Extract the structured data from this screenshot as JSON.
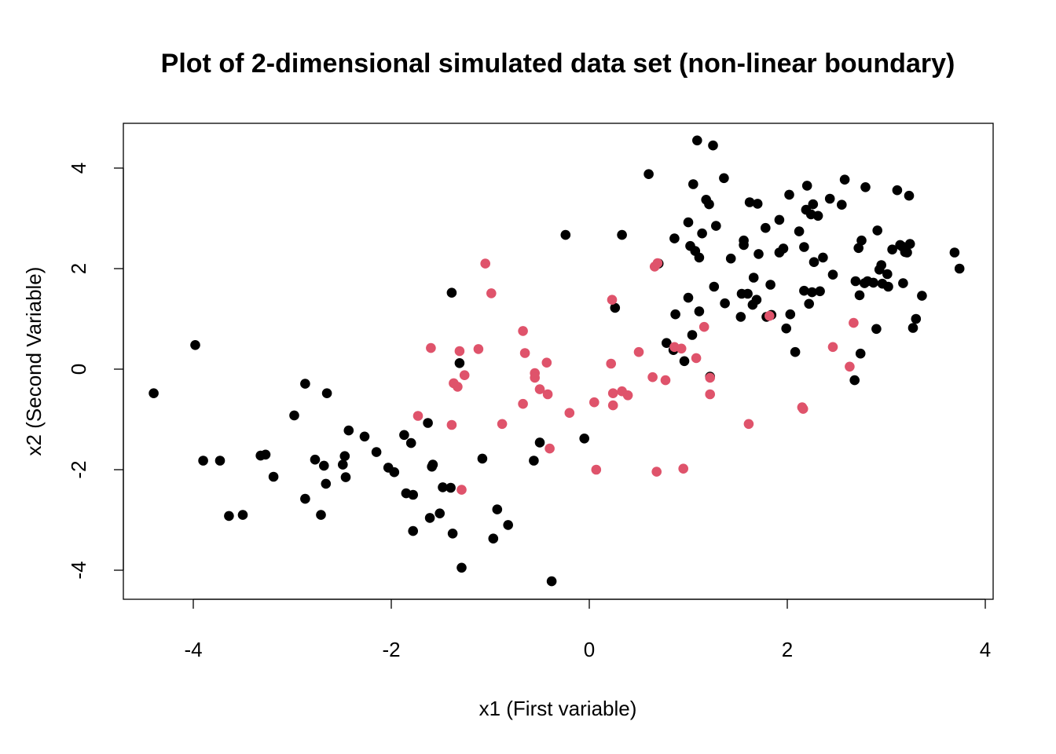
{
  "chart_data": {
    "type": "scatter",
    "title": "Plot of 2-dimensional simulated data set (non-linear boundary)",
    "xlabel": "x1 (First variable)",
    "ylabel": "x2 (Second Variable)",
    "xlim": [
      -4.6,
      4.0
    ],
    "ylim": [
      -4.6,
      4.85
    ],
    "xticks": [
      -4,
      -2,
      0,
      2,
      4
    ],
    "yticks": [
      -4,
      -2,
      0,
      2,
      4
    ],
    "grid": false,
    "legend": "none",
    "colors": {
      "black": "#000000",
      "red": "#DF536B"
    },
    "series": [
      {
        "color": "black",
        "points": [
          [
            -4.4,
            -0.48
          ],
          [
            -3.98,
            0.48
          ],
          [
            -3.9,
            -1.82
          ],
          [
            -3.73,
            -1.82
          ],
          [
            -3.64,
            -2.92
          ],
          [
            -3.5,
            -2.9
          ],
          [
            -3.32,
            -1.72
          ],
          [
            -3.27,
            -1.7
          ],
          [
            -3.19,
            -2.14
          ],
          [
            -2.98,
            -0.92
          ],
          [
            -2.87,
            -0.29
          ],
          [
            -2.87,
            -2.58
          ],
          [
            -2.77,
            -1.8
          ],
          [
            -2.71,
            -2.9
          ],
          [
            -2.68,
            -1.92
          ],
          [
            -2.66,
            -2.28
          ],
          [
            -2.65,
            -0.48
          ],
          [
            -2.49,
            -1.9
          ],
          [
            -2.47,
            -1.73
          ],
          [
            -2.46,
            -2.15
          ],
          [
            -2.43,
            -1.22
          ],
          [
            -2.27,
            -1.34
          ],
          [
            -2.15,
            -1.65
          ],
          [
            -2.03,
            -1.96
          ],
          [
            -1.97,
            -2.05
          ],
          [
            -1.87,
            -1.31
          ],
          [
            -1.85,
            -2.47
          ],
          [
            -1.8,
            -1.47
          ],
          [
            -1.78,
            -2.5
          ],
          [
            -1.78,
            -3.22
          ],
          [
            -1.63,
            -1.07
          ],
          [
            -1.61,
            -2.96
          ],
          [
            -1.59,
            -1.94
          ],
          [
            -1.58,
            -1.9
          ],
          [
            -1.51,
            -2.87
          ],
          [
            -1.48,
            -2.35
          ],
          [
            -1.4,
            -2.36
          ],
          [
            -1.38,
            -3.27
          ],
          [
            -1.39,
            1.52
          ],
          [
            -1.31,
            0.12
          ],
          [
            -1.29,
            -3.95
          ],
          [
            -1.08,
            -1.78
          ],
          [
            -0.97,
            -3.37
          ],
          [
            -0.93,
            -2.79
          ],
          [
            -0.82,
            -3.1
          ],
          [
            -0.56,
            -1.82
          ],
          [
            -0.5,
            -1.46
          ],
          [
            -0.38,
            -4.22
          ],
          [
            -0.24,
            2.67
          ],
          [
            -0.05,
            -1.38
          ],
          [
            0.26,
            1.22
          ],
          [
            0.33,
            2.67
          ],
          [
            0.6,
            3.88
          ],
          [
            0.7,
            2.1
          ],
          [
            0.78,
            0.52
          ],
          [
            0.85,
            0.38
          ],
          [
            0.86,
            2.6
          ],
          [
            0.87,
            1.09
          ],
          [
            0.96,
            0.16
          ],
          [
            1.0,
            2.92
          ],
          [
            1.0,
            1.42
          ],
          [
            1.02,
            2.45
          ],
          [
            1.04,
            0.68
          ],
          [
            1.05,
            3.68
          ],
          [
            1.07,
            2.35
          ],
          [
            1.09,
            4.55
          ],
          [
            1.11,
            2.22
          ],
          [
            1.11,
            1.15
          ],
          [
            1.14,
            2.7
          ],
          [
            1.18,
            3.37
          ],
          [
            1.21,
            3.28
          ],
          [
            1.22,
            -0.15
          ],
          [
            1.25,
            4.45
          ],
          [
            1.26,
            1.64
          ],
          [
            1.28,
            2.85
          ],
          [
            1.36,
            3.8
          ],
          [
            1.37,
            1.31
          ],
          [
            1.43,
            2.2
          ],
          [
            1.53,
            1.04
          ],
          [
            1.54,
            1.5
          ],
          [
            1.56,
            2.56
          ],
          [
            1.56,
            2.47
          ],
          [
            1.6,
            1.5
          ],
          [
            1.62,
            3.32
          ],
          [
            1.65,
            1.28
          ],
          [
            1.66,
            1.82
          ],
          [
            1.69,
            1.38
          ],
          [
            1.7,
            3.29
          ],
          [
            1.71,
            2.29
          ],
          [
            1.78,
            2.81
          ],
          [
            1.79,
            1.04
          ],
          [
            1.83,
            1.68
          ],
          [
            1.84,
            1.08
          ],
          [
            1.92,
            2.97
          ],
          [
            1.92,
            2.32
          ],
          [
            1.96,
            2.4
          ],
          [
            1.99,
            0.81
          ],
          [
            2.02,
            3.47
          ],
          [
            2.03,
            1.09
          ],
          [
            2.08,
            0.34
          ],
          [
            2.12,
            2.74
          ],
          [
            2.17,
            2.43
          ],
          [
            2.17,
            1.56
          ],
          [
            2.19,
            3.17
          ],
          [
            2.2,
            3.65
          ],
          [
            2.22,
            1.3
          ],
          [
            2.24,
            3.08
          ],
          [
            2.25,
            1.53
          ],
          [
            2.26,
            3.28
          ],
          [
            2.27,
            2.13
          ],
          [
            2.31,
            3.05
          ],
          [
            2.33,
            1.55
          ],
          [
            2.36,
            2.22
          ],
          [
            2.43,
            3.39
          ],
          [
            2.46,
            1.88
          ],
          [
            2.55,
            3.27
          ],
          [
            2.58,
            3.77
          ],
          [
            2.68,
            -0.22
          ],
          [
            2.69,
            1.75
          ],
          [
            2.72,
            2.41
          ],
          [
            2.73,
            1.47
          ],
          [
            2.74,
            0.31
          ],
          [
            2.75,
            2.56
          ],
          [
            2.78,
            1.71
          ],
          [
            2.79,
            3.62
          ],
          [
            2.81,
            1.75
          ],
          [
            2.87,
            1.72
          ],
          [
            2.9,
            0.8
          ],
          [
            2.91,
            2.76
          ],
          [
            2.93,
            1.98
          ],
          [
            2.95,
            2.07
          ],
          [
            2.96,
            1.7
          ],
          [
            3.01,
            1.89
          ],
          [
            3.02,
            1.64
          ],
          [
            3.06,
            2.38
          ],
          [
            3.11,
            3.56
          ],
          [
            3.14,
            2.47
          ],
          [
            3.16,
            2.44
          ],
          [
            3.17,
            1.71
          ],
          [
            3.19,
            2.33
          ],
          [
            3.21,
            2.32
          ],
          [
            3.23,
            3.45
          ],
          [
            3.24,
            2.49
          ],
          [
            3.27,
            0.82
          ],
          [
            3.3,
            1.0
          ],
          [
            3.36,
            1.46
          ],
          [
            3.69,
            2.32
          ],
          [
            3.74,
            2.0
          ]
        ]
      },
      {
        "color": "red",
        "points": [
          [
            -1.73,
            -0.93
          ],
          [
            -1.6,
            0.42
          ],
          [
            -1.39,
            -1.11
          ],
          [
            -1.37,
            -0.28
          ],
          [
            -1.33,
            -0.35
          ],
          [
            -1.31,
            0.36
          ],
          [
            -1.29,
            -2.4
          ],
          [
            -1.26,
            -0.12
          ],
          [
            -1.12,
            0.4
          ],
          [
            -1.05,
            2.1
          ],
          [
            -0.99,
            1.51
          ],
          [
            -0.88,
            -1.09
          ],
          [
            -0.67,
            0.76
          ],
          [
            -0.67,
            -0.69
          ],
          [
            -0.65,
            0.32
          ],
          [
            -0.55,
            -0.08
          ],
          [
            -0.55,
            -0.17
          ],
          [
            -0.5,
            -0.4
          ],
          [
            -0.43,
            0.13
          ],
          [
            -0.42,
            -0.5
          ],
          [
            -0.4,
            -1.58
          ],
          [
            -0.2,
            -0.87
          ],
          [
            0.05,
            -0.66
          ],
          [
            0.07,
            -2.0
          ],
          [
            0.22,
            0.11
          ],
          [
            0.23,
            1.38
          ],
          [
            0.24,
            -0.48
          ],
          [
            0.24,
            -0.72
          ],
          [
            0.33,
            -0.44
          ],
          [
            0.39,
            -0.52
          ],
          [
            0.5,
            0.34
          ],
          [
            0.64,
            -0.16
          ],
          [
            0.66,
            2.04
          ],
          [
            0.69,
            2.11
          ],
          [
            0.68,
            -2.04
          ],
          [
            0.77,
            -0.22
          ],
          [
            0.86,
            0.44
          ],
          [
            0.93,
            0.41
          ],
          [
            0.95,
            -1.98
          ],
          [
            1.08,
            0.22
          ],
          [
            1.16,
            0.84
          ],
          [
            1.22,
            -0.5
          ],
          [
            1.22,
            -0.17
          ],
          [
            1.61,
            -1.09
          ],
          [
            1.82,
            1.06
          ],
          [
            2.15,
            -0.76
          ],
          [
            2.16,
            -0.79
          ],
          [
            2.46,
            0.44
          ],
          [
            2.63,
            0.05
          ],
          [
            2.67,
            0.92
          ]
        ]
      }
    ]
  }
}
